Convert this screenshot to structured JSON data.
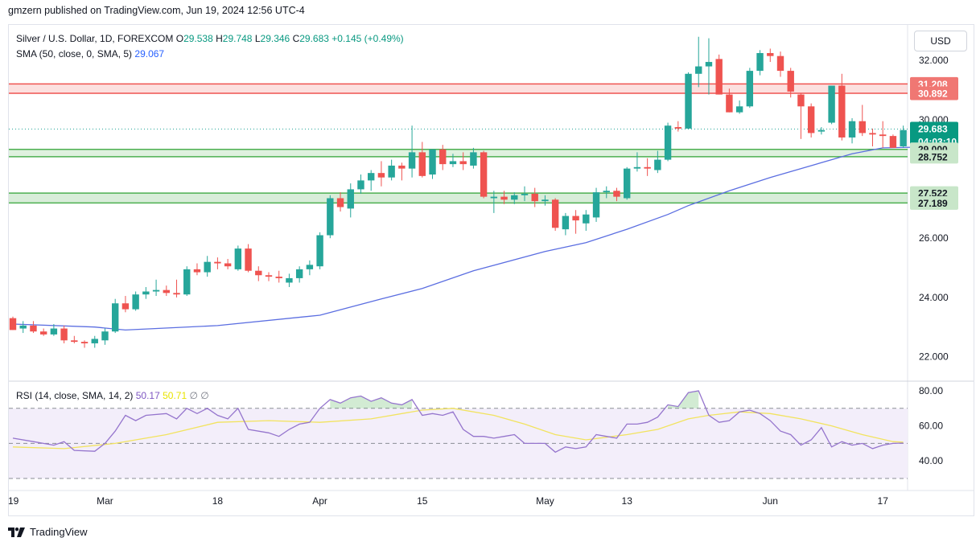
{
  "header": {
    "publish_line": "gmzern published on TradingView.com, Jun 19, 2024 12:56 UTC-4"
  },
  "legend": {
    "symbol": "Silver / U.S. Dollar, 1D, FOREXCOM",
    "o_label": "O",
    "o_value": "29.538",
    "h_label": "H",
    "h_value": "29.748",
    "l_label": "L",
    "l_value": "29.346",
    "c_label": "C",
    "c_value": "29.683",
    "change": "+0.145 (+0.49%)",
    "sma_label": "SMA (50, close, 0, SMA, 5)",
    "sma_value": "29.067",
    "rsi_label": "RSI (14, close, SMA, 14, 2)",
    "rsi_value": "50.17",
    "rsi_sma_value": "50.71",
    "rsi_extra": "∅ ∅"
  },
  "currency_button": "USD",
  "branding": {
    "text": "TradingView",
    "logo_icon": "tradingview-logo-icon"
  },
  "colors": {
    "up": "#26a69a",
    "down": "#ef5350",
    "sma": "#5b6ee1",
    "rsi": "#9575cd",
    "rsi_sma": "#f2e35f",
    "resistance": "#ef5350",
    "support": "#4caf50"
  },
  "chart_data": [
    {
      "type": "candlestick",
      "title": "Silver / U.S. Dollar, 1D, FOREXCOM",
      "ylim": [
        21.2,
        33.2
      ],
      "y_ticks": [
        "32.000",
        "30.000",
        "26.000",
        "24.000",
        "22.000"
      ],
      "x_ticks": [
        {
          "label": "19",
          "index": 0
        },
        {
          "label": "Mar",
          "index": 9
        },
        {
          "label": "18",
          "index": 20
        },
        {
          "label": "Apr",
          "index": 30
        },
        {
          "label": "15",
          "index": 40
        },
        {
          "label": "May",
          "index": 52
        },
        {
          "label": "13",
          "index": 60
        },
        {
          "label": "Jun",
          "index": 74
        },
        {
          "label": "17",
          "index": 85
        }
      ],
      "candles": [
        [
          23.3,
          23.35,
          22.9,
          22.9
        ],
        [
          22.95,
          23.2,
          22.8,
          23.05
        ],
        [
          23.05,
          23.2,
          22.8,
          22.85
        ],
        [
          22.85,
          22.95,
          22.7,
          22.75
        ],
        [
          22.75,
          23.1,
          22.7,
          22.95
        ],
        [
          22.95,
          23.05,
          22.45,
          22.55
        ],
        [
          22.55,
          22.7,
          22.45,
          22.5
        ],
        [
          22.5,
          22.55,
          22.3,
          22.45
        ],
        [
          22.45,
          22.7,
          22.3,
          22.6
        ],
        [
          22.55,
          22.95,
          22.4,
          22.85
        ],
        [
          22.85,
          23.95,
          22.8,
          23.8
        ],
        [
          23.8,
          24.05,
          23.5,
          23.6
        ],
        [
          23.6,
          24.2,
          23.55,
          24.1
        ],
        [
          24.1,
          24.35,
          23.95,
          24.2
        ],
        [
          24.2,
          24.6,
          24.05,
          24.25
        ],
        [
          24.25,
          24.4,
          24.05,
          24.15
        ],
        [
          24.15,
          24.6,
          24.0,
          24.1
        ],
        [
          24.1,
          25.05,
          24.05,
          24.95
        ],
        [
          24.95,
          25.15,
          24.75,
          24.85
        ],
        [
          24.85,
          25.4,
          24.7,
          25.2
        ],
        [
          25.2,
          25.35,
          24.95,
          25.15
        ],
        [
          25.15,
          25.3,
          24.95,
          25.05
        ],
        [
          24.95,
          25.75,
          24.9,
          25.65
        ],
        [
          25.65,
          25.8,
          24.85,
          24.9
        ],
        [
          24.9,
          25.05,
          24.55,
          24.75
        ],
        [
          24.75,
          24.85,
          24.55,
          24.7
        ],
        [
          24.7,
          24.9,
          24.5,
          24.65
        ],
        [
          24.5,
          24.8,
          24.35,
          24.65
        ],
        [
          24.65,
          25.05,
          24.5,
          24.95
        ],
        [
          24.95,
          25.25,
          24.75,
          25.1
        ],
        [
          25.05,
          26.2,
          24.95,
          26.1
        ],
        [
          26.1,
          27.45,
          26.0,
          27.35
        ],
        [
          27.35,
          27.55,
          26.9,
          27.05
        ],
        [
          27.0,
          27.85,
          26.7,
          27.65
        ],
        [
          27.65,
          28.15,
          27.5,
          27.95
        ],
        [
          27.95,
          28.3,
          27.6,
          28.2
        ],
        [
          28.2,
          28.6,
          27.75,
          28.05
        ],
        [
          28.05,
          28.65,
          27.95,
          28.45
        ],
        [
          28.45,
          28.55,
          27.95,
          28.35
        ],
        [
          28.35,
          29.8,
          28.05,
          28.9
        ],
        [
          28.9,
          29.25,
          28.05,
          28.1
        ],
        [
          28.15,
          29.0,
          28.0,
          29.0
        ],
        [
          29.0,
          29.15,
          28.3,
          28.5
        ],
        [
          28.5,
          28.85,
          28.4,
          28.6
        ],
        [
          28.6,
          28.9,
          28.3,
          28.5
        ],
        [
          28.45,
          29.05,
          28.35,
          28.9
        ],
        [
          28.9,
          28.95,
          27.35,
          27.4
        ],
        [
          27.35,
          27.6,
          26.85,
          27.4
        ],
        [
          27.4,
          27.6,
          27.15,
          27.3
        ],
        [
          27.3,
          27.55,
          27.15,
          27.45
        ],
        [
          27.45,
          27.75,
          27.25,
          27.5
        ],
        [
          27.5,
          27.7,
          27.05,
          27.25
        ],
        [
          27.25,
          27.45,
          27.1,
          27.3
        ],
        [
          27.3,
          27.35,
          26.25,
          26.35
        ],
        [
          26.3,
          26.85,
          26.1,
          26.75
        ],
        [
          26.75,
          26.95,
          26.15,
          26.6
        ],
        [
          26.5,
          26.95,
          26.25,
          26.8
        ],
        [
          26.7,
          27.7,
          26.55,
          27.55
        ],
        [
          27.55,
          27.75,
          27.35,
          27.6
        ],
        [
          27.6,
          27.7,
          27.25,
          27.4
        ],
        [
          27.35,
          28.4,
          27.3,
          28.35
        ],
        [
          28.35,
          28.9,
          28.25,
          28.4
        ],
        [
          28.4,
          28.7,
          28.1,
          28.35
        ],
        [
          28.3,
          28.95,
          28.2,
          28.65
        ],
        [
          28.65,
          29.9,
          28.6,
          29.8
        ],
        [
          29.75,
          29.95,
          29.6,
          29.7
        ],
        [
          29.7,
          31.6,
          29.7,
          31.55
        ],
        [
          31.55,
          32.8,
          31.1,
          31.8
        ],
        [
          31.8,
          32.75,
          30.85,
          31.95
        ],
        [
          32.05,
          32.2,
          30.85,
          30.85
        ],
        [
          30.85,
          31.05,
          30.25,
          30.25
        ],
        [
          30.25,
          30.65,
          30.2,
          30.45
        ],
        [
          30.45,
          31.75,
          30.4,
          31.65
        ],
        [
          31.65,
          32.35,
          31.5,
          32.25
        ],
        [
          32.25,
          32.4,
          31.95,
          32.15
        ],
        [
          32.15,
          32.3,
          31.45,
          31.65
        ],
        [
          31.65,
          31.75,
          30.75,
          30.95
        ],
        [
          30.85,
          30.9,
          29.35,
          30.45
        ],
        [
          30.45,
          30.55,
          29.4,
          29.55
        ],
        [
          29.6,
          29.75,
          29.5,
          29.65
        ],
        [
          29.9,
          31.15,
          29.85,
          31.15
        ],
        [
          31.15,
          31.55,
          29.3,
          29.4
        ],
        [
          29.4,
          30.05,
          29.2,
          29.95
        ],
        [
          29.95,
          30.5,
          29.45,
          29.55
        ],
        [
          29.55,
          29.7,
          29.1,
          29.5
        ],
        [
          29.5,
          29.95,
          29.05,
          29.45
        ],
        [
          29.45,
          29.5,
          29.1,
          29.05
        ],
        [
          29.1,
          29.8,
          29.05,
          29.65
        ],
        [
          29.6,
          29.8,
          29.15,
          29.55
        ],
        [
          29.54,
          29.75,
          29.35,
          29.68
        ]
      ],
      "series": [
        {
          "name": "SMA (50, close, 0, SMA, 5)",
          "points": [
            [
              0,
              23.1
            ],
            [
              8,
              23.0
            ],
            [
              11,
              22.9
            ],
            [
              20,
              23.05
            ],
            [
              30,
              23.4
            ],
            [
              36,
              23.95
            ],
            [
              40,
              24.3
            ],
            [
              45,
              24.9
            ],
            [
              52,
              25.55
            ],
            [
              56,
              25.85
            ],
            [
              60,
              26.3
            ],
            [
              64,
              26.8
            ],
            [
              66,
              27.1
            ],
            [
              70,
              27.6
            ],
            [
              74,
              28.05
            ],
            [
              78,
              28.45
            ],
            [
              82,
              28.85
            ],
            [
              85,
              29.05
            ],
            [
              88,
              29.07
            ]
          ]
        }
      ],
      "annotations": {
        "resistance_zone": {
          "top": 31.208,
          "bottom": 30.892,
          "labels": [
            "31.208",
            "30.892"
          ]
        },
        "support_zone_upper": {
          "top": 29.0,
          "bottom": 28.752,
          "labels": [
            "29.000",
            "28.752"
          ]
        },
        "support_zone_lower": {
          "top": 27.522,
          "bottom": 27.189,
          "labels": [
            "27.522",
            "27.189"
          ]
        },
        "last_price": {
          "value": 29.683,
          "label": "29.683",
          "countdown": "04:03:10"
        }
      }
    },
    {
      "type": "line",
      "title": "RSI (14, close, SMA, 14, 2)",
      "ylim": [
        30,
        80
      ],
      "y_ticks": [
        "80.00",
        "60.00",
        "40.00"
      ],
      "bands": {
        "upper": 70,
        "middle": 50,
        "lower": 30
      },
      "series": [
        {
          "name": "RSI",
          "points": [
            [
              0,
              53
            ],
            [
              2,
              51
            ],
            [
              4,
              49
            ],
            [
              5,
              51
            ],
            [
              6,
              46
            ],
            [
              8,
              45.5
            ],
            [
              9,
              50
            ],
            [
              10,
              57
            ],
            [
              11,
              66
            ],
            [
              12,
              63
            ],
            [
              13,
              66
            ],
            [
              15,
              67
            ],
            [
              16,
              64
            ],
            [
              17,
              70
            ],
            [
              18,
              67
            ],
            [
              19,
              70
            ],
            [
              20,
              66
            ],
            [
              21,
              64
            ],
            [
              22,
              70
            ],
            [
              23,
              58
            ],
            [
              25,
              56
            ],
            [
              26,
              54
            ],
            [
              27,
              58
            ],
            [
              28,
              61
            ],
            [
              29,
              62
            ],
            [
              30,
              70
            ],
            [
              31,
              75
            ],
            [
              32,
              73
            ],
            [
              33,
              76
            ],
            [
              34,
              77
            ],
            [
              35,
              74
            ],
            [
              36,
              76
            ],
            [
              37,
              73
            ],
            [
              38,
              72
            ],
            [
              39,
              75
            ],
            [
              40,
              66
            ],
            [
              41,
              67
            ],
            [
              42,
              66
            ],
            [
              43,
              68
            ],
            [
              44,
              58
            ],
            [
              45,
              54
            ],
            [
              46,
              54
            ],
            [
              47,
              53
            ],
            [
              48,
              54
            ],
            [
              49,
              55
            ],
            [
              50,
              50
            ],
            [
              51,
              50
            ],
            [
              52,
              50
            ],
            [
              53,
              45
            ],
            [
              54,
              48
            ],
            [
              55,
              47
            ],
            [
              56,
              48
            ],
            [
              57,
              55
            ],
            [
              58,
              54
            ],
            [
              59,
              53
            ],
            [
              60,
              61
            ],
            [
              61,
              61
            ],
            [
              62,
              62
            ],
            [
              63,
              65
            ],
            [
              64,
              72
            ],
            [
              65,
              71
            ],
            [
              66,
              79
            ],
            [
              67,
              80
            ],
            [
              68,
              66
            ],
            [
              69,
              62
            ],
            [
              70,
              63
            ],
            [
              71,
              68
            ],
            [
              72,
              69
            ],
            [
              73,
              67
            ],
            [
              74,
              63
            ],
            [
              75,
              57
            ],
            [
              76,
              55
            ],
            [
              77,
              49
            ],
            [
              78,
              52
            ],
            [
              79,
              59
            ],
            [
              80,
              48
            ],
            [
              81,
              51
            ],
            [
              82,
              49
            ],
            [
              83,
              50
            ],
            [
              84,
              47
            ],
            [
              85,
              49
            ],
            [
              86,
              50
            ],
            [
              87,
              50.17
            ]
          ]
        },
        {
          "name": "RSI-based MA",
          "points": [
            [
              0,
              48
            ],
            [
              5,
              47
            ],
            [
              10,
              50
            ],
            [
              15,
              55
            ],
            [
              20,
              62
            ],
            [
              25,
              63
            ],
            [
              30,
              62
            ],
            [
              35,
              64
            ],
            [
              40,
              69
            ],
            [
              43,
              70
            ],
            [
              47,
              66
            ],
            [
              50,
              61
            ],
            [
              53,
              55
            ],
            [
              56,
              52
            ],
            [
              60,
              55
            ],
            [
              63,
              58
            ],
            [
              66,
              64
            ],
            [
              68,
              66
            ],
            [
              71,
              68
            ],
            [
              74,
              67
            ],
            [
              77,
              64
            ],
            [
              80,
              60
            ],
            [
              83,
              55
            ],
            [
              86,
              51
            ],
            [
              87,
              50.71
            ]
          ]
        }
      ]
    }
  ]
}
